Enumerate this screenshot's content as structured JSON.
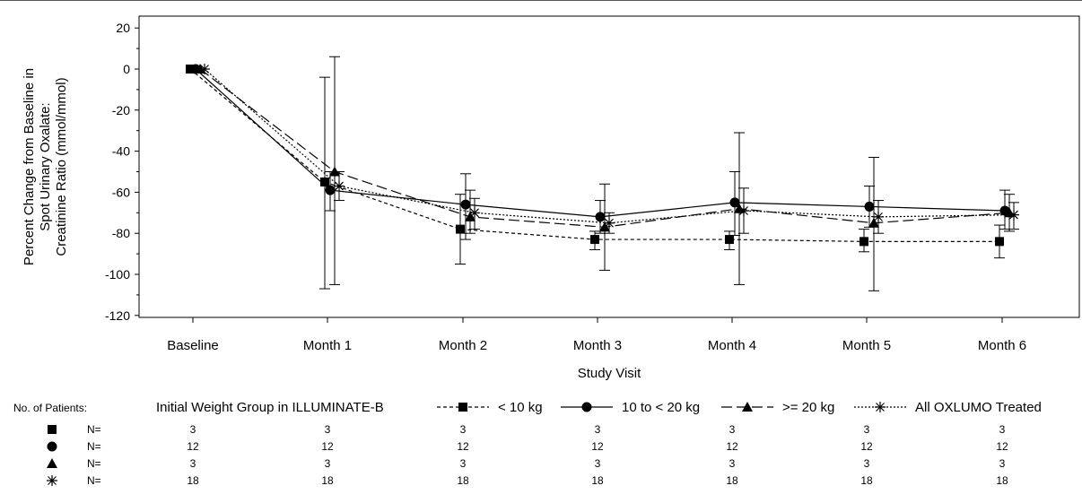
{
  "chart_data": {
    "type": "line",
    "xlabel": "Study Visit",
    "ylabel_lines": [
      "Percent Change from Baseline in",
      "Spot Urinary Oxalate:",
      "Creatinine Ratio (mmol/mmol)"
    ],
    "categories": [
      "Baseline",
      "Month 1",
      "Month 2",
      "Month 3",
      "Month 4",
      "Month 5",
      "Month 6"
    ],
    "ylim": [
      -120,
      20
    ],
    "yticks": [
      20,
      0,
      -20,
      -40,
      -60,
      -80,
      -100,
      -120
    ],
    "grid": false,
    "legend_title": "Initial Weight Group in ILLUMINATE-B",
    "series": [
      {
        "name": "< 10 kg",
        "marker": "square",
        "line": "short-dash",
        "values": [
          0,
          -55,
          -78,
          -83,
          -83,
          -84,
          -84
        ],
        "err_low": [
          0,
          -107,
          -95,
          -88,
          -88,
          -89,
          -92
        ],
        "err_high": [
          0,
          -4,
          -61,
          -79,
          -79,
          -78,
          -76
        ]
      },
      {
        "name": "10 to < 20 kg",
        "marker": "circle",
        "line": "solid",
        "values": [
          0,
          -59,
          -66,
          -72,
          -65,
          -67,
          -69
        ],
        "err_low": [
          0,
          -69,
          -83,
          -80,
          -81,
          -77,
          -78
        ],
        "err_high": [
          0,
          -50,
          -51,
          -64,
          -50,
          -57,
          -59
        ]
      },
      {
        "name": ">= 20 kg",
        "marker": "triangle",
        "line": "long-dash",
        "values": [
          0,
          -50,
          -72,
          -77,
          -68,
          -75,
          -70
        ],
        "err_low": [
          0,
          -105,
          -80,
          -98,
          -105,
          -108,
          -79
        ],
        "err_high": [
          0,
          6,
          -59,
          -56,
          -31,
          -43,
          -61
        ]
      },
      {
        "name": "All OXLUMO Treated",
        "marker": "star",
        "line": "dotted",
        "values": [
          0,
          -57,
          -70,
          -75,
          -69,
          -72,
          -71
        ],
        "err_low": [
          0,
          -64,
          -78,
          -80,
          -80,
          -80,
          -78
        ],
        "err_high": [
          0,
          -50,
          -63,
          -70,
          -58,
          -64,
          -65
        ]
      }
    ],
    "patients_table": {
      "title": "No. of Patients:",
      "row_label": "N=",
      "rows": [
        {
          "marker": "square",
          "counts": [
            "3",
            "3",
            "3",
            "3",
            "3",
            "3",
            "3"
          ]
        },
        {
          "marker": "circle",
          "counts": [
            "12",
            "12",
            "12",
            "12",
            "12",
            "12",
            "12"
          ]
        },
        {
          "marker": "triangle",
          "counts": [
            "3",
            "3",
            "3",
            "3",
            "3",
            "3",
            "3"
          ]
        },
        {
          "marker": "star",
          "counts": [
            "18",
            "18",
            "18",
            "18",
            "18",
            "18",
            "18"
          ]
        }
      ]
    }
  }
}
